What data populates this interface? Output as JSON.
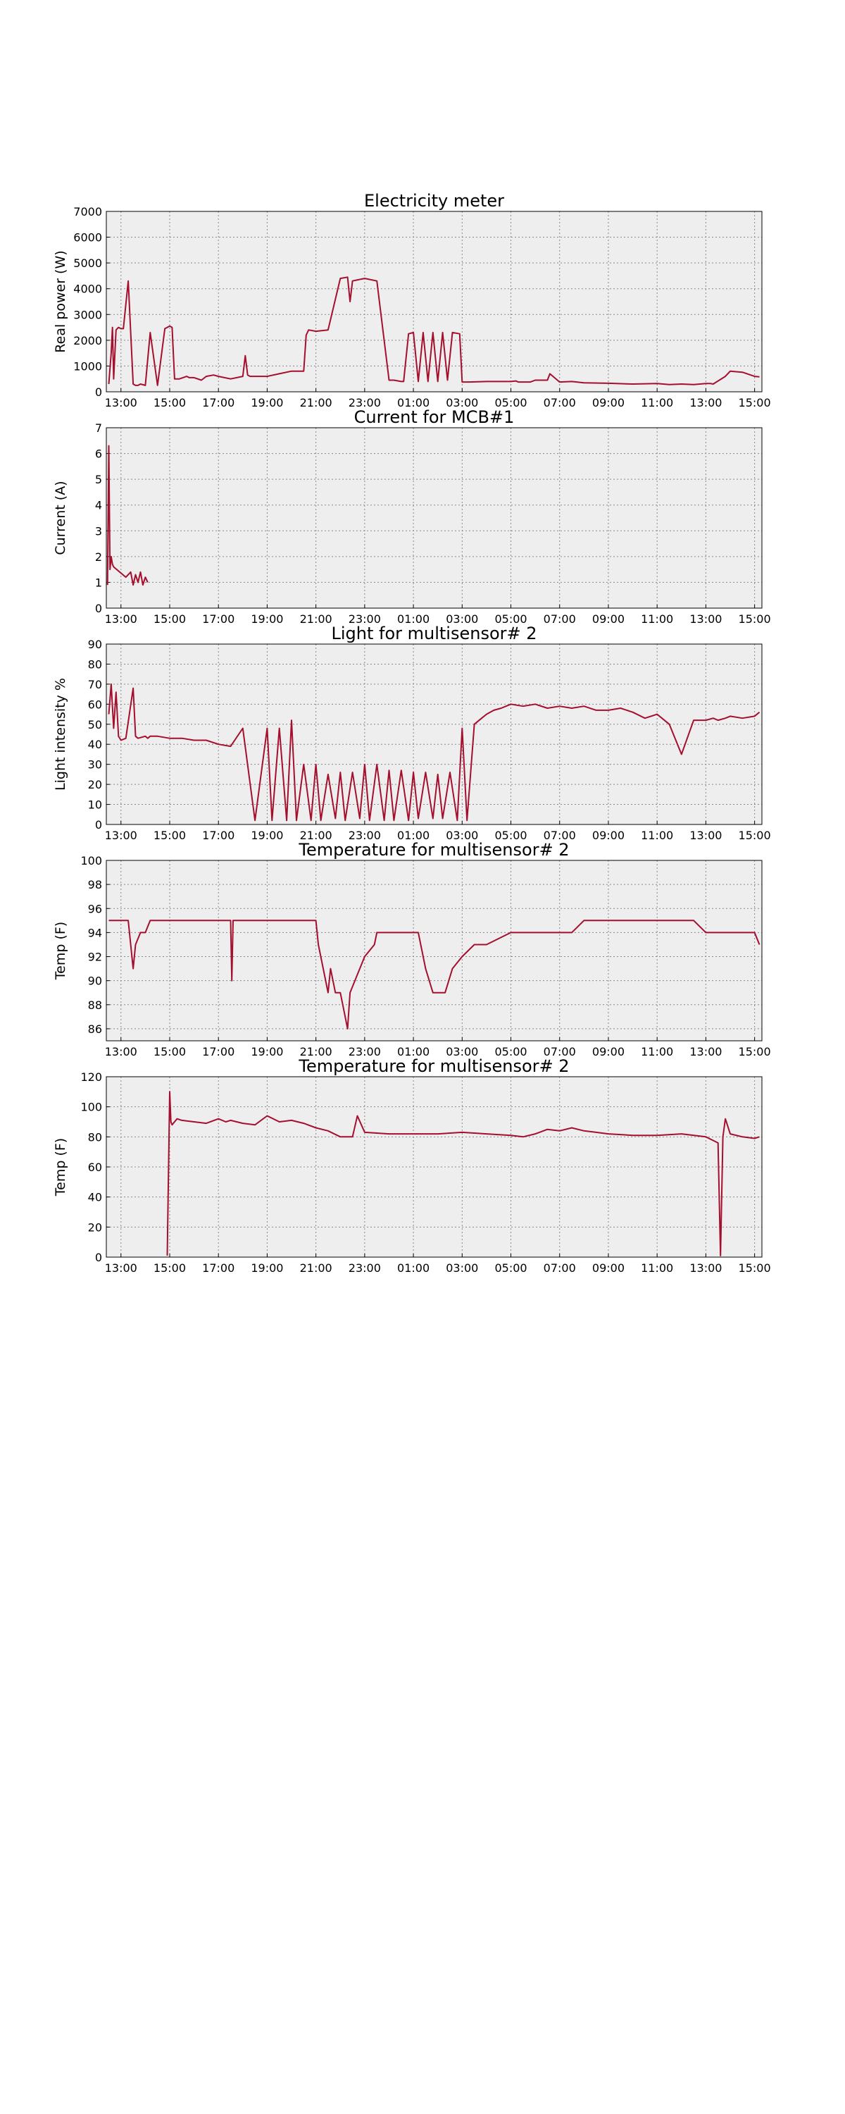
{
  "x_ticks": [
    "13:00",
    "15:00",
    "17:00",
    "19:00",
    "21:00",
    "23:00",
    "01:00",
    "03:00",
    "05:00",
    "07:00",
    "09:00",
    "11:00",
    "13:00",
    "15:00"
  ],
  "colors": {
    "line": "#a50f2e",
    "plot_bg": "#eeeeee",
    "grid": "#888888"
  },
  "chart_data": [
    {
      "type": "line",
      "title": "Electricity meter",
      "ylabel": "Real power (W)",
      "ylim": [
        0,
        7000
      ],
      "yticks": [
        0,
        1000,
        2000,
        3000,
        4000,
        5000,
        6000,
        7000
      ],
      "xlim_hours": [
        -0.6,
        26.3
      ],
      "grid": true,
      "series": [
        {
          "x": [
            -0.5,
            -0.4,
            -0.35,
            -0.3,
            -0.2,
            -0.1,
            0,
            0.1,
            0.3,
            0.5,
            0.6,
            0.7,
            0.8,
            1.0,
            1.2,
            1.5,
            1.8,
            1.9,
            2.0,
            2.1,
            2.2,
            2.4,
            2.7,
            2.8,
            3.0,
            3.3,
            3.5,
            3.8,
            4.0,
            4.5,
            5.0,
            5.1,
            5.2,
            5.3,
            6.0,
            6.5,
            7.0,
            7.5,
            7.6,
            7.7,
            8.0,
            8.5,
            9.0,
            9.3,
            9.4,
            9.5,
            10.0,
            10.5,
            11.0,
            11.2,
            11.5,
            11.6,
            11.8,
            12.0,
            12.2,
            12.4,
            12.6,
            12.8,
            13.0,
            13.2,
            13.4,
            13.6,
            13.9,
            14.0,
            14.1,
            14.3,
            15.0,
            16.0,
            16.2,
            16.3,
            16.8,
            17.0,
            17.5,
            17.6,
            18.0,
            18.5,
            19.0,
            20.0,
            21.0,
            22.0,
            22.5,
            23.0,
            23.5,
            24.0,
            24.2,
            24.3,
            24.8,
            25.0,
            25.5,
            26.0,
            26.2
          ],
          "values": [
            300,
            1500,
            2500,
            500,
            2400,
            2500,
            2450,
            2450,
            4300,
            300,
            250,
            250,
            300,
            250,
            2300,
            250,
            2450,
            2500,
            2550,
            2500,
            500,
            500,
            600,
            550,
            550,
            450,
            600,
            650,
            600,
            500,
            600,
            1400,
            650,
            600,
            600,
            700,
            800,
            800,
            2200,
            2400,
            2350,
            2400,
            4400,
            4450,
            3500,
            4300,
            4400,
            4300,
            450,
            450,
            400,
            400,
            2250,
            2300,
            400,
            2300,
            400,
            2300,
            400,
            2300,
            450,
            2300,
            2250,
            380,
            380,
            380,
            400,
            400,
            420,
            380,
            380,
            450,
            450,
            700,
            380,
            400,
            350,
            330,
            300,
            320,
            280,
            300,
            280,
            320,
            320,
            300,
            600,
            800,
            760,
            600,
            580
          ]
        }
      ]
    },
    {
      "type": "line",
      "title": "Current for MCB#1",
      "ylabel": "Current (A)",
      "ylim": [
        0,
        7
      ],
      "yticks": [
        0,
        1,
        2,
        3,
        4,
        5,
        6,
        7
      ],
      "xlim_hours": [
        -0.6,
        26.3
      ],
      "grid": true,
      "series": [
        {
          "x": [
            -0.55,
            -0.5,
            -0.45,
            -0.4,
            -0.35,
            -0.3,
            0.2,
            0.4,
            0.5,
            0.6,
            0.7,
            0.8,
            0.9,
            1.0,
            1.1
          ],
          "values": [
            0.9,
            6.3,
            1.5,
            2.0,
            1.7,
            1.6,
            1.2,
            1.4,
            0.9,
            1.3,
            1.0,
            1.4,
            0.9,
            1.2,
            1.0
          ]
        }
      ]
    },
    {
      "type": "line",
      "title": "Light for multisensor# 2",
      "ylabel": "Light intensity %",
      "ylim": [
        0,
        90
      ],
      "yticks": [
        0,
        10,
        20,
        30,
        40,
        50,
        60,
        70,
        80,
        90
      ],
      "xlim_hours": [
        -0.6,
        26.3
      ],
      "grid": true,
      "series": [
        {
          "x": [
            -0.5,
            -0.4,
            -0.3,
            -0.2,
            -0.1,
            0,
            0.2,
            0.5,
            0.6,
            0.7,
            1.0,
            1.1,
            1.2,
            1.5,
            2.0,
            2.5,
            3.0,
            3.5,
            4.0,
            4.5,
            5.0,
            5.5,
            6.0,
            6.2,
            6.5,
            6.8,
            7.0,
            7.2,
            7.5,
            7.8,
            8.0,
            8.2,
            8.5,
            8.8,
            9.0,
            9.2,
            9.5,
            9.8,
            10.0,
            10.2,
            10.5,
            10.8,
            11.0,
            11.2,
            11.5,
            11.8,
            12.0,
            12.2,
            12.5,
            12.8,
            13.0,
            13.2,
            13.5,
            13.8,
            14.0,
            14.2,
            14.5,
            14.8,
            15.0,
            15.3,
            15.6,
            16.0,
            16.5,
            17.0,
            17.5,
            18.0,
            18.5,
            19.0,
            19.5,
            20.0,
            20.5,
            21.0,
            21.5,
            22.0,
            22.5,
            23.0,
            23.5,
            24.0,
            24.3,
            24.5,
            24.8,
            25.0,
            25.5,
            26.0,
            26.2
          ],
          "values": [
            55,
            70,
            48,
            66,
            44,
            42,
            43,
            68,
            44,
            43,
            44,
            43,
            44,
            44,
            43,
            43,
            42,
            42,
            40,
            39,
            48,
            2,
            48,
            2,
            48,
            2,
            52,
            2,
            30,
            2,
            30,
            2,
            25,
            3,
            26,
            2,
            26,
            3,
            30,
            2,
            30,
            2,
            27,
            2,
            27,
            2,
            26,
            3,
            26,
            3,
            25,
            3,
            26,
            2,
            48,
            2,
            50,
            53,
            55,
            57,
            58,
            60,
            59,
            60,
            58,
            59,
            58,
            59,
            57,
            57,
            58,
            56,
            53,
            55,
            50,
            35,
            52,
            52,
            53,
            52,
            53,
            54,
            53,
            54,
            56
          ]
        }
      ]
    },
    {
      "type": "line",
      "title": "Temperature for multisensor# 2",
      "ylabel": "Temp (F)",
      "ylim": [
        85,
        100
      ],
      "yticks": [
        86,
        88,
        90,
        92,
        94,
        96,
        98,
        100
      ],
      "xlim_hours": [
        -0.6,
        26.3
      ],
      "grid": true,
      "series": [
        {
          "x": [
            -0.5,
            0.3,
            0.4,
            0.5,
            0.6,
            0.8,
            1.0,
            1.2,
            3.0,
            4.5,
            4.55,
            4.6,
            6.0,
            8.0,
            8.1,
            8.3,
            8.5,
            8.6,
            8.8,
            9.0,
            9.3,
            9.4,
            9.6,
            10.0,
            10.4,
            10.5,
            10.8,
            11.0,
            11.5,
            12.2,
            12.5,
            12.8,
            13.0,
            13.3,
            13.6,
            14.0,
            14.5,
            15.0,
            16.0,
            17.0,
            18.0,
            18.5,
            19.0,
            20.0,
            21.0,
            22.0,
            22.5,
            23.0,
            23.5,
            24.0,
            25.0,
            26.0,
            26.2
          ],
          "values": [
            95,
            95,
            93,
            91,
            93,
            94,
            94,
            95,
            95,
            95,
            90,
            95,
            95,
            95,
            93,
            91,
            89,
            91,
            89,
            89,
            86,
            89,
            90,
            92,
            93,
            94,
            94,
            94,
            94,
            94,
            91,
            89,
            89,
            89,
            91,
            92,
            93,
            93,
            94,
            94,
            94,
            94,
            95,
            95,
            95,
            95,
            95,
            95,
            95,
            94,
            94,
            94,
            93
          ]
        }
      ]
    },
    {
      "type": "line",
      "title": "Temperature for multisensor# 2",
      "ylabel": "Temp (F)",
      "ylim": [
        0,
        120
      ],
      "yticks": [
        0,
        20,
        40,
        60,
        80,
        100,
        120
      ],
      "xlim_hours": [
        -0.6,
        26.3
      ],
      "grid": true,
      "series": [
        {
          "x": [
            1.9,
            2.0,
            2.05,
            2.1,
            2.3,
            2.5,
            3.0,
            3.5,
            4.0,
            4.3,
            4.5,
            5.0,
            5.5,
            6.0,
            6.5,
            7.0,
            7.5,
            8.0,
            8.5,
            9.0,
            9.5,
            9.7,
            10.0,
            11.0,
            12.0,
            13.0,
            14.0,
            15.0,
            16.0,
            16.5,
            17.0,
            17.5,
            18.0,
            18.5,
            19.0,
            19.5,
            20.0,
            21.0,
            22.0,
            23.0,
            24.0,
            24.5,
            24.6,
            24.7,
            24.8,
            25.0,
            25.5,
            26.0,
            26.2
          ],
          "values": [
            1,
            110,
            90,
            88,
            92,
            91,
            90,
            89,
            92,
            90,
            91,
            89,
            88,
            94,
            90,
            91,
            89,
            86,
            84,
            80,
            80,
            94,
            83,
            82,
            82,
            82,
            83,
            82,
            81,
            80,
            82,
            85,
            84,
            86,
            84,
            83,
            82,
            81,
            81,
            82,
            80,
            76,
            1,
            80,
            92,
            82,
            80,
            79,
            80
          ]
        }
      ]
    }
  ]
}
